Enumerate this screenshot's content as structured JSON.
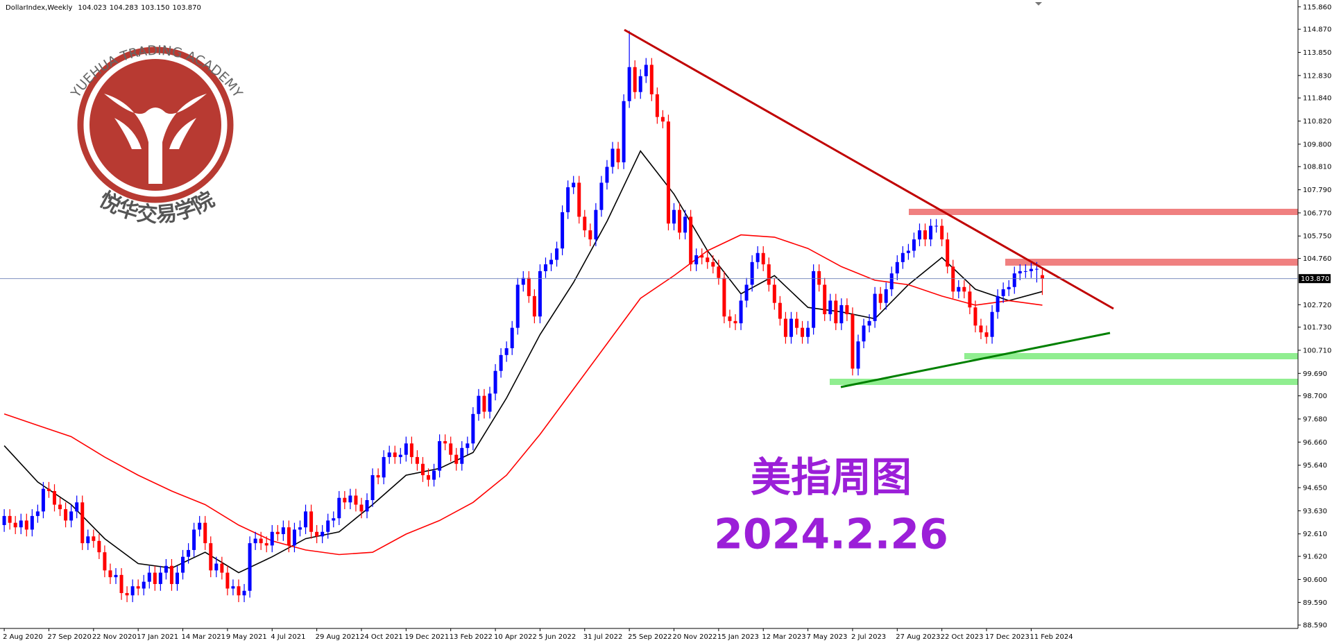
{
  "chart_data": {
    "type": "candlestick",
    "symbol": "DollarIndex,Weekly",
    "header_ohlc": [
      {
        "value": 104.023,
        "label": "104.023"
      },
      {
        "value": 104.283,
        "label": "104.283"
      },
      {
        "value": 103.15,
        "label": "103.150"
      },
      {
        "value": 103.87,
        "label": "103.870"
      }
    ],
    "up_color": "#0000ff",
    "down_color": "#ff0000",
    "categories": [
      "2 Aug 2020",
      null,
      null,
      null,
      null,
      null,
      null,
      null,
      "27 Sep 2020",
      null,
      null,
      null,
      null,
      null,
      null,
      null,
      "22 Nov 2020",
      null,
      null,
      null,
      null,
      null,
      null,
      null,
      "17 Jan 2021",
      null,
      null,
      null,
      null,
      null,
      null,
      null,
      "14 Mar 2021",
      null,
      null,
      null,
      null,
      null,
      null,
      null,
      "9 May 2021",
      null,
      null,
      null,
      null,
      null,
      null,
      null,
      "4 Jul 2021",
      null,
      null,
      null,
      null,
      null,
      null,
      null,
      "29 Aug 2021",
      null,
      null,
      null,
      null,
      null,
      null,
      null,
      "24 Oct 2021",
      null,
      null,
      null,
      null,
      null,
      null,
      null,
      "19 Dec 2021",
      null,
      null,
      null,
      null,
      null,
      null,
      null,
      "13 Feb 2022",
      null,
      null,
      null,
      null,
      null,
      null,
      null,
      "10 Apr 2022",
      null,
      null,
      null,
      null,
      null,
      null,
      null,
      "5 Jun 2022",
      null,
      null,
      null,
      null,
      null,
      null,
      null,
      "31 Jul 2022",
      null,
      null,
      null,
      null,
      null,
      null,
      null,
      "25 Sep 2022",
      null,
      null,
      null,
      null,
      null,
      null,
      null,
      "20 Nov 2022",
      null,
      null,
      null,
      null,
      null,
      null,
      null,
      "15 Jan 2023",
      null,
      null,
      null,
      null,
      null,
      null,
      null,
      "12 Mar 2023",
      null,
      null,
      null,
      null,
      null,
      null,
      null,
      "7 May 2023",
      null,
      null,
      null,
      null,
      null,
      null,
      null,
      "2 Jul 2023",
      null,
      null,
      null,
      null,
      null,
      null,
      null,
      "27 Aug 2023",
      null,
      null,
      null,
      null,
      null,
      null,
      null,
      "22 Oct 2023",
      null,
      null,
      null,
      null,
      null,
      null,
      null,
      "17 Dec 2023",
      null,
      null,
      null,
      null,
      null,
      null,
      null,
      "11 Feb 2024",
      null,
      null
    ],
    "open": [
      93.0,
      93.4,
      93.1,
      92.9,
      93.2,
      92.8,
      93.4,
      93.6,
      94.6,
      94.5,
      93.9,
      93.7,
      93.2,
      93.6,
      94.0,
      92.2,
      92.5,
      92.3,
      91.8,
      91.0,
      90.7,
      90.8,
      90.0,
      89.9,
      90.3,
      90.2,
      90.5,
      90.9,
      90.4,
      90.9,
      91.2,
      90.4,
      90.9,
      91.6,
      91.9,
      92.8,
      93.1,
      92.2,
      91.0,
      91.3,
      90.9,
      90.2,
      90.3,
      89.9,
      90.1,
      92.2,
      92.4,
      92.2,
      92.1,
      92.7,
      92.6,
      92.9,
      92.1,
      92.8,
      92.9,
      93.6,
      92.7,
      92.5,
      92.7,
      93.2,
      93.3,
      94.2,
      94.0,
      94.3,
      93.9,
      93.6,
      94.1,
      95.2,
      95.1,
      96.0,
      96.2,
      96.0,
      96.1,
      96.6,
      96.0,
      95.7,
      95.2,
      95.0,
      95.4,
      96.7,
      96.6,
      96.1,
      95.7,
      96.4,
      96.6,
      97.9,
      98.7,
      98.0,
      98.8,
      99.8,
      100.5,
      100.8,
      101.7,
      103.6,
      103.9,
      103.1,
      102.2,
      104.2,
      104.5,
      104.7,
      105.2,
      106.8,
      107.9,
      108.1,
      106.6,
      106.0,
      105.6,
      106.9,
      108.1,
      108.8,
      109.6,
      109.0,
      111.7,
      113.2,
      112.1,
      112.8,
      113.3,
      112.0,
      111.0,
      110.8,
      106.3,
      106.9,
      105.9,
      106.6,
      104.5,
      104.9,
      104.8,
      104.6,
      104.4,
      103.9,
      102.2,
      102.0,
      101.9,
      102.9,
      103.6,
      104.6,
      105.0,
      104.5,
      103.6,
      102.8,
      102.1,
      101.3,
      102.1,
      101.7,
      101.3,
      101.7,
      104.2,
      103.6,
      102.3,
      102.9,
      101.9,
      102.7,
      102.3,
      99.9,
      101.1,
      101.8,
      102.0,
      103.2,
      102.8,
      103.4,
      104.1,
      104.6,
      105.0,
      105.1,
      105.6,
      106.0,
      105.6,
      106.2,
      106.2,
      105.6,
      104.4,
      103.3,
      103.5,
      103.3,
      102.6,
      101.8,
      101.5,
      101.3,
      102.4,
      103.1,
      103.4,
      103.5,
      104.1,
      104.2,
      104.2,
      104.3,
      104.023
    ],
    "high": [
      93.7,
      93.7,
      93.4,
      93.5,
      93.5,
      93.7,
      93.9,
      94.9,
      94.9,
      94.8,
      94.2,
      94.0,
      93.9,
      94.3,
      94.3,
      92.8,
      92.8,
      92.6,
      92.1,
      91.3,
      91.1,
      91.1,
      90.3,
      90.6,
      90.6,
      90.8,
      91.2,
      91.2,
      91.2,
      91.5,
      91.5,
      91.2,
      91.9,
      92.2,
      93.1,
      93.4,
      93.4,
      92.5,
      91.6,
      91.6,
      91.2,
      90.6,
      90.6,
      90.4,
      92.5,
      92.7,
      92.7,
      92.5,
      93.0,
      93.0,
      93.2,
      93.2,
      93.1,
      93.2,
      93.9,
      93.9,
      93.0,
      93.0,
      93.5,
      93.6,
      94.5,
      94.5,
      94.6,
      94.6,
      94.2,
      94.4,
      95.5,
      95.5,
      96.3,
      96.5,
      96.5,
      96.4,
      96.9,
      96.9,
      96.3,
      96.0,
      95.5,
      95.7,
      97.0,
      97.0,
      96.9,
      96.4,
      96.7,
      96.9,
      98.2,
      99.0,
      99.0,
      99.1,
      100.1,
      100.8,
      101.1,
      102.0,
      103.9,
      104.2,
      104.2,
      103.4,
      104.5,
      104.8,
      105.0,
      105.5,
      107.1,
      108.2,
      108.4,
      108.4,
      106.9,
      106.3,
      107.2,
      108.4,
      109.1,
      109.9,
      109.9,
      112.0,
      114.8,
      113.5,
      113.1,
      113.6,
      113.6,
      112.3,
      111.3,
      111.1,
      107.2,
      107.2,
      106.9,
      106.9,
      105.2,
      105.2,
      105.1,
      104.9,
      104.7,
      104.2,
      102.5,
      102.3,
      103.2,
      103.9,
      104.9,
      105.3,
      105.3,
      104.8,
      103.9,
      103.1,
      102.4,
      102.4,
      102.4,
      102.0,
      102.0,
      104.5,
      104.5,
      103.9,
      103.2,
      103.2,
      103.0,
      103.0,
      102.6,
      101.4,
      102.1,
      102.3,
      103.5,
      103.5,
      103.7,
      104.4,
      104.9,
      105.3,
      105.4,
      105.9,
      106.3,
      106.3,
      106.5,
      106.5,
      106.5,
      105.9,
      104.7,
      103.8,
      103.8,
      103.6,
      102.9,
      102.1,
      101.8,
      102.7,
      103.4,
      103.7,
      103.8,
      104.4,
      104.5,
      104.5,
      104.6,
      104.6,
      104.283
    ],
    "low": [
      92.7,
      92.8,
      92.6,
      92.6,
      92.5,
      92.5,
      93.1,
      93.3,
      94.2,
      93.6,
      93.4,
      92.9,
      92.9,
      93.3,
      91.9,
      91.9,
      92.0,
      91.5,
      90.7,
      90.4,
      90.4,
      89.7,
      89.6,
      89.6,
      89.9,
      89.9,
      90.2,
      90.1,
      90.1,
      90.6,
      90.1,
      90.1,
      90.6,
      91.3,
      91.6,
      92.5,
      91.9,
      90.7,
      90.7,
      90.6,
      89.9,
      89.9,
      89.6,
      89.6,
      89.8,
      91.9,
      91.9,
      91.8,
      91.8,
      92.3,
      92.3,
      91.8,
      91.8,
      92.5,
      92.6,
      92.4,
      92.2,
      92.2,
      92.4,
      92.9,
      93.0,
      93.7,
      93.7,
      93.6,
      93.3,
      93.3,
      93.8,
      94.8,
      94.8,
      95.7,
      95.7,
      95.7,
      95.8,
      95.7,
      95.4,
      94.9,
      94.7,
      94.7,
      95.1,
      96.3,
      95.8,
      95.4,
      95.4,
      96.1,
      96.3,
      97.6,
      97.7,
      97.7,
      98.5,
      99.5,
      100.2,
      100.5,
      101.4,
      103.3,
      102.8,
      101.9,
      101.9,
      103.9,
      104.2,
      104.4,
      104.9,
      106.5,
      107.6,
      106.3,
      105.7,
      105.3,
      105.3,
      106.6,
      107.8,
      108.5,
      108.7,
      108.7,
      111.4,
      111.8,
      111.8,
      112.5,
      111.7,
      110.7,
      110.5,
      106.0,
      106.0,
      105.6,
      105.6,
      104.2,
      104.2,
      104.5,
      104.3,
      104.1,
      103.6,
      101.9,
      101.7,
      101.6,
      101.6,
      102.6,
      103.3,
      104.3,
      104.2,
      103.3,
      102.5,
      101.8,
      101.0,
      101.0,
      101.4,
      101.0,
      101.0,
      101.4,
      103.3,
      102.0,
      102.0,
      101.6,
      101.6,
      102.0,
      99.6,
      99.6,
      100.8,
      101.5,
      101.7,
      102.5,
      102.5,
      103.1,
      103.8,
      104.3,
      104.7,
      104.8,
      105.3,
      105.3,
      105.3,
      105.9,
      105.3,
      104.1,
      103.0,
      103.0,
      103.0,
      102.3,
      101.5,
      101.2,
      101.0,
      101.0,
      102.1,
      102.8,
      103.1,
      103.2,
      103.8,
      103.9,
      103.9,
      103.7,
      103.15
    ],
    "close": [
      93.4,
      93.1,
      92.9,
      93.2,
      92.8,
      93.4,
      93.6,
      94.6,
      94.5,
      93.9,
      93.7,
      93.2,
      93.6,
      94.0,
      92.2,
      92.5,
      92.3,
      91.8,
      91.0,
      90.7,
      90.8,
      90.0,
      89.9,
      90.3,
      90.2,
      90.5,
      90.9,
      90.4,
      90.9,
      91.2,
      90.4,
      90.9,
      91.6,
      91.9,
      92.8,
      93.1,
      92.2,
      91.0,
      91.3,
      90.9,
      90.2,
      90.3,
      89.9,
      90.1,
      92.2,
      92.4,
      92.2,
      92.1,
      92.7,
      92.6,
      92.9,
      92.1,
      92.8,
      92.9,
      93.6,
      92.7,
      92.5,
      92.7,
      93.2,
      93.3,
      94.2,
      94.0,
      94.3,
      93.9,
      93.6,
      94.1,
      95.2,
      95.1,
      96.0,
      96.2,
      96.0,
      96.1,
      96.6,
      96.0,
      95.7,
      95.2,
      95.0,
      95.4,
      96.7,
      96.6,
      96.1,
      95.7,
      96.4,
      96.6,
      97.9,
      98.7,
      98.0,
      98.8,
      99.8,
      100.5,
      100.8,
      101.7,
      103.6,
      103.9,
      103.1,
      102.2,
      104.2,
      104.5,
      104.7,
      105.2,
      106.8,
      107.9,
      108.1,
      106.6,
      106.0,
      105.6,
      106.9,
      108.1,
      108.8,
      109.6,
      109.0,
      111.7,
      113.2,
      112.1,
      112.8,
      113.3,
      112.0,
      111.0,
      110.8,
      106.3,
      106.9,
      105.9,
      106.6,
      104.5,
      104.9,
      104.8,
      104.6,
      104.4,
      103.9,
      102.2,
      102.0,
      101.9,
      102.9,
      103.6,
      104.6,
      105.0,
      104.5,
      103.6,
      102.8,
      102.1,
      101.3,
      102.1,
      101.7,
      101.3,
      101.7,
      104.2,
      103.6,
      102.3,
      102.9,
      101.9,
      102.7,
      102.3,
      99.9,
      101.1,
      101.8,
      102.0,
      103.2,
      102.8,
      103.4,
      104.1,
      104.6,
      105.0,
      105.1,
      105.6,
      106.0,
      105.6,
      106.2,
      106.2,
      105.6,
      104.4,
      103.3,
      103.5,
      103.3,
      102.6,
      101.8,
      101.5,
      101.3,
      102.4,
      103.1,
      103.4,
      103.5,
      104.1,
      104.2,
      104.2,
      104.3,
      104.3,
      103.87
    ],
    "overlays": [
      {
        "color": "#000000",
        "x": [
          0,
          6,
          12,
          18,
          24,
          30,
          36,
          42,
          48,
          54,
          60,
          66,
          72,
          78,
          84,
          90,
          96,
          102,
          108,
          114,
          120,
          126,
          132,
          138,
          144,
          150,
          156,
          162,
          168,
          174,
          180,
          186
        ],
        "values": [
          96.5,
          94.9,
          93.9,
          92.4,
          91.3,
          91.1,
          91.8,
          90.9,
          91.6,
          92.4,
          92.7,
          93.9,
          95.2,
          95.5,
          96.2,
          98.6,
          101.4,
          103.7,
          106.4,
          109.5,
          107.6,
          105.1,
          103.2,
          104.0,
          102.6,
          102.4,
          102.1,
          103.6,
          104.8,
          103.4,
          102.9,
          103.3
        ]
      },
      {
        "color": "#ff0000",
        "x": [
          0,
          6,
          12,
          18,
          24,
          30,
          36,
          42,
          48,
          54,
          60,
          66,
          72,
          78,
          84,
          90,
          96,
          102,
          108,
          114,
          120,
          126,
          132,
          138,
          144,
          150,
          156,
          162,
          168,
          174,
          180,
          186
        ],
        "values": [
          97.9,
          97.4,
          96.9,
          96.0,
          95.2,
          94.5,
          93.9,
          93.0,
          92.3,
          91.9,
          91.7,
          91.8,
          92.6,
          93.2,
          94.0,
          95.2,
          97.0,
          99.0,
          101.0,
          103.0,
          104.0,
          105.1,
          105.8,
          105.7,
          105.2,
          104.4,
          103.8,
          103.6,
          103.1,
          102.7,
          102.9,
          102.7
        ]
      }
    ],
    "current_price": {
      "value": 103.87,
      "label": "103.870"
    },
    "ylim": [
      88.44,
      116.16
    ],
    "yticks": [
      {
        "value": 115.86,
        "label": "115.860"
      },
      {
        "value": 114.87,
        "label": "114.870"
      },
      {
        "value": 113.85,
        "label": "113.850"
      },
      {
        "value": 112.83,
        "label": "112.830"
      },
      {
        "value": 111.84,
        "label": "111.840"
      },
      {
        "value": 110.82,
        "label": "110.820"
      },
      {
        "value": 109.8,
        "label": "109.800"
      },
      {
        "value": 108.81,
        "label": "108.810"
      },
      {
        "value": 107.79,
        "label": "107.790"
      },
      {
        "value": 106.77,
        "label": "106.770"
      },
      {
        "value": 105.75,
        "label": "105.750"
      },
      {
        "value": 104.76,
        "label": "104.760"
      },
      {
        "value": 102.72,
        "label": "102.720"
      },
      {
        "value": 101.73,
        "label": "101.730"
      },
      {
        "value": 100.71,
        "label": "100.710"
      },
      {
        "value": 99.69,
        "label": "99.690"
      },
      {
        "value": 98.7,
        "label": "98.700"
      },
      {
        "value": 97.68,
        "label": "97.680"
      },
      {
        "value": 96.66,
        "label": "96.660"
      },
      {
        "value": 95.64,
        "label": "95.640"
      },
      {
        "value": 94.65,
        "label": "94.650"
      },
      {
        "value": 93.63,
        "label": "93.630"
      },
      {
        "value": 92.61,
        "label": "92.610"
      },
      {
        "value": 91.62,
        "label": "91.620"
      },
      {
        "value": 90.6,
        "label": "90.600"
      },
      {
        "value": 89.59,
        "label": "89.590"
      },
      {
        "value": 88.59,
        "label": "88.590"
      }
    ],
    "annotation_title": "美指周图",
    "annotation_date": "2024.2.26",
    "logo_text": "YUEHUA TRADING ACADEMY",
    "logo_cn": "悦华交易学院"
  }
}
